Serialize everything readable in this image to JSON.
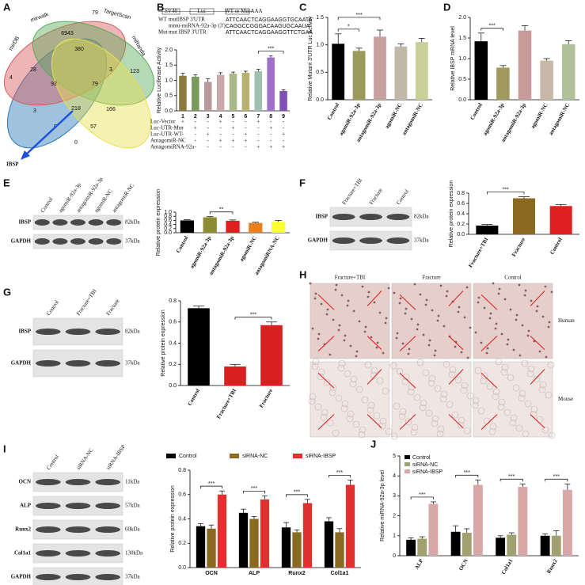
{
  "venn": {
    "panel": "A",
    "sets": [
      "mirDB",
      "mirwalk",
      "TargetScan",
      "miRanda"
    ],
    "counts": [
      4,
      28,
      6943,
      380,
      79,
      92,
      79,
      3,
      123,
      3,
      218,
      166,
      0,
      57,
      0
    ],
    "target": "IBSP"
  },
  "sequences": [
    {
      "label": "WT",
      "name": "mutIBSP 3'UTR",
      "seq": "ATTCAACTCAGGAAGGTGCAATA"
    },
    {
      "label": "",
      "name": "mmu-miRNA-92a-3p (3')",
      "seq": "CAGGCCGGGACAAGUGCAAUA"
    },
    {
      "label": "Mut",
      "name": "mut IBSP 3'UTR",
      "seq": "ATTCAACTCAGGAAGGTTCTGAA"
    }
  ],
  "construct": [
    "SV40",
    "Luc",
    "WT or Mut",
    "AAA"
  ],
  "blots": [
    {
      "lanes": [
        "Control",
        "agomiR-92a-3p",
        "antagomiR-92a-3p",
        "agomiR-NC",
        "antagomiR-NC"
      ],
      "rows": [
        {
          "name": "IBSP",
          "size": "82kDa"
        },
        {
          "name": "GAPDH",
          "size": "37kDa"
        }
      ]
    },
    {
      "lanes": [
        "Fracture+TBI",
        "Fracture",
        "Control"
      ],
      "rows": [
        {
          "name": "IBSP",
          "size": "82kDa"
        },
        {
          "name": "GAPDH",
          "size": "37kDa"
        }
      ]
    },
    {
      "lanes": [
        "Control",
        "Fracture+TBI",
        "Fracture"
      ],
      "rows": [
        {
          "name": "IBSP",
          "size": "82kDa"
        },
        {
          "name": "GAPDH",
          "size": "37kDa"
        }
      ]
    },
    {
      "lanes": [
        "Control",
        "siRNA-NC",
        "siRNA-IBSP"
      ],
      "rows": [
        {
          "name": "OCN",
          "size": "11kDa"
        },
        {
          "name": "ALP",
          "size": "57kDa"
        },
        {
          "name": "Runx2",
          "size": "60kDa"
        },
        {
          "name": "Col1a1",
          "size": "130kDa"
        },
        {
          "name": "GAPDH",
          "size": "37kDa"
        }
      ]
    }
  ],
  "histology": {
    "panel": "H",
    "columns": [
      "Fracture+TBI",
      "Fracture",
      "Control"
    ],
    "rows": [
      "Human",
      "Mouse"
    ]
  },
  "chart_data": [
    {
      "type": "bar",
      "panel": "B",
      "ylabel": "Relative Luciferase Activity",
      "categories": [
        "1",
        "2",
        "3",
        "4",
        "5",
        "6",
        "7",
        "8",
        "9"
      ],
      "values": [
        1.15,
        1.12,
        0.95,
        1.18,
        1.22,
        1.25,
        1.3,
        1.75,
        0.65
      ],
      "errors": [
        0.08,
        0.06,
        0.1,
        0.07,
        0.05,
        0.05,
        0.06,
        0.05,
        0.04
      ],
      "colors": [
        "#8c7a3c",
        "#7a9a5a",
        "#b89a9a",
        "#c8a8a8",
        "#a8b888",
        "#b8b070",
        "#a0c0b0",
        "#a070c8",
        "#8050b8"
      ],
      "ylim": [
        0,
        2
      ],
      "yticks": [
        {
          "value": 0,
          "label": "0.0"
        },
        0.5,
        {
          "value": 1,
          "label": "1.0"
        },
        1.5,
        {
          "value": 2,
          "label": "2.0"
        }
      ],
      "significance": [
        {
          "between": [
            "7",
            "9"
          ],
          "label": "***"
        }
      ],
      "treatments": [
        {
          "name": "Luc-Vector",
          "marks": [
            "+",
            "-",
            "-",
            "+",
            "-",
            "-",
            "+",
            "-",
            "-"
          ]
        },
        {
          "name": "Luc-UTR-Mut",
          "marks": [
            "-",
            "+",
            "-",
            "-",
            "+",
            "-",
            "-",
            "+",
            "-"
          ]
        },
        {
          "name": "Luc-UTR-WT",
          "marks": [
            "-",
            "-",
            "+",
            "-",
            "-",
            "+",
            "-",
            "-",
            "+"
          ]
        },
        {
          "name": "AntagomiR-NC",
          "marks": [
            "-",
            "-",
            "-",
            "+",
            "+",
            "+",
            "-",
            "-",
            "-"
          ]
        },
        {
          "name": "AntagomiRNA-92a",
          "marks": [
            "-",
            "-",
            "-",
            "-",
            "-",
            "-",
            "+",
            "+",
            "+"
          ]
        }
      ]
    },
    {
      "type": "bar",
      "panel": "C",
      "ylabel": "Relative Mutant 3'UTR Luc Activity",
      "categories": [
        "Control",
        "agomiR-92a-3p",
        "antagomiR-92a-3p",
        "agomiR-NC",
        "antagomiR-NC"
      ],
      "values": [
        1.02,
        0.89,
        1.15,
        0.97,
        1.05
      ],
      "errors": [
        0.18,
        0.05,
        0.12,
        0.05,
        0.07
      ],
      "colors": [
        "#000000",
        "#9a9a5a",
        "#c8a0a0",
        "#c0b8a8",
        "#c8d098"
      ],
      "ylim": [
        0,
        1.5
      ],
      "yticks": [
        {
          "value": 0,
          "label": "0.0"
        },
        0.5,
        {
          "value": 1,
          "label": "1.0"
        },
        1.5
      ],
      "significance": [
        {
          "between": [
            "Control",
            "agomiR-92a-3p"
          ],
          "label": "*"
        },
        {
          "between": [
            "Control",
            "antagomiR-92a-3p"
          ],
          "label": "***"
        }
      ]
    },
    {
      "type": "bar",
      "panel": "D",
      "ylabel": "Relative IBSP mRNA level",
      "categories": [
        "Control",
        "agomiR-92a-3p",
        "antagomiR-92a-3p",
        "agomiR-NC",
        "antagomiR-NC"
      ],
      "values": [
        1.42,
        0.78,
        1.68,
        0.95,
        1.35
      ],
      "errors": [
        0.2,
        0.05,
        0.12,
        0.05,
        0.08
      ],
      "colors": [
        "#000000",
        "#a09a60",
        "#c89a9a",
        "#c8b8a8",
        "#b0c098"
      ],
      "ylim": [
        0,
        2
      ],
      "yticks": [
        {
          "value": 0,
          "label": "0.0"
        },
        0.5,
        {
          "value": 1,
          "label": "1.0"
        },
        1.5,
        {
          "value": 2,
          "label": "2.0"
        }
      ],
      "significance": [
        {
          "between": [
            "Control",
            "agomiR-92a-3p"
          ],
          "label": "***"
        }
      ]
    },
    {
      "type": "bar",
      "panel": "E",
      "ylabel": "Relative protein expression",
      "categories": [
        "Control",
        "agomiR-92a-3p",
        "antagomiR-92a-3p",
        "agomiR-NC",
        "antagomiRNA-NC"
      ],
      "values": [
        0.6,
        0.75,
        0.58,
        0.48,
        0.53
      ],
      "errors": [
        0.03,
        0.03,
        0.04,
        0.03,
        0.07
      ],
      "colors": [
        "#000000",
        "#8c8c32",
        "#e02020",
        "#e88020",
        "#ffff30"
      ],
      "ylim": [
        0,
        1
      ],
      "yticks": [
        {
          "value": 0,
          "label": "0.0"
        },
        0.2,
        0.4,
        0.6,
        0.8,
        {
          "value": 1,
          "label": "1.0"
        }
      ],
      "significance": [
        {
          "between": [
            "agomiR-92a-3p",
            "antagomiR-92a-3p"
          ],
          "label": "**"
        }
      ]
    },
    {
      "type": "bar",
      "panel": "F",
      "ylabel": "Relative protein expression",
      "categories": [
        "Fracture+TBI",
        "Fracture",
        "Control"
      ],
      "values": [
        0.17,
        0.7,
        0.55
      ],
      "errors": [
        0.02,
        0.03,
        0.03
      ],
      "colors": [
        "#000000",
        "#8a6a20",
        "#e02020"
      ],
      "ylim": [
        0,
        0.8
      ],
      "yticks": [
        {
          "value": 0,
          "label": "0.0"
        },
        0.2,
        0.4,
        0.6,
        0.8
      ],
      "significance": [
        {
          "between": [
            "Fracture+TBI",
            "Fracture"
          ],
          "label": "***"
        }
      ]
    },
    {
      "type": "bar",
      "panel": "G",
      "ylabel": "Relative protein expression",
      "categories": [
        "Control",
        "Fracture+TBI",
        "Fracture"
      ],
      "values": [
        0.73,
        0.18,
        0.57
      ],
      "errors": [
        0.02,
        0.02,
        0.03
      ],
      "colors": [
        "#000000",
        "#d82020",
        "#d82020"
      ],
      "ylim": [
        0,
        0.8
      ],
      "yticks": [
        {
          "value": 0,
          "label": "0.0"
        },
        0.2,
        0.4,
        0.6,
        0.8
      ],
      "significance": [
        {
          "between": [
            "Fracture+TBI",
            "Fracture"
          ],
          "label": "***"
        }
      ]
    },
    {
      "type": "bar",
      "panel": "I",
      "ylabel": "Relative protein expression",
      "categories": [
        "OCN",
        "ALP",
        "Runx2",
        "Col1a1"
      ],
      "series": [
        {
          "name": "Control",
          "color": "#000000",
          "values": [
            0.34,
            0.45,
            0.33,
            0.38
          ],
          "errors": [
            0.02,
            0.03,
            0.04,
            0.03
          ]
        },
        {
          "name": "siRNA-NC",
          "color": "#8a6a20",
          "values": [
            0.32,
            0.4,
            0.29,
            0.29
          ],
          "errors": [
            0.03,
            0.02,
            0.02,
            0.03
          ]
        },
        {
          "name": "siRNA-IBSP",
          "color": "#e03030",
          "values": [
            0.6,
            0.56,
            0.53,
            0.68
          ],
          "errors": [
            0.03,
            0.03,
            0.03,
            0.04
          ]
        }
      ],
      "ylim": [
        0,
        0.8
      ],
      "yticks": [
        {
          "value": 0,
          "label": "0.0"
        },
        0.2,
        0.4,
        0.6,
        0.8
      ],
      "group_significance": [
        "***",
        "***",
        "***",
        "***"
      ],
      "legend": "top"
    },
    {
      "type": "bar",
      "panel": "J",
      "ylabel": "Relative miRNA-92a-3p level",
      "categories": [
        "ALP",
        "OCN",
        "Col1a1",
        "Runx2"
      ],
      "series": [
        {
          "name": "Control",
          "color": "#000000",
          "values": [
            0.8,
            1.2,
            0.9,
            1.0
          ],
          "errors": [
            0.1,
            0.3,
            0.1,
            0.1
          ]
        },
        {
          "name": "siRNA-NC",
          "color": "#a0a070",
          "values": [
            0.85,
            1.15,
            1.05,
            1.0
          ],
          "errors": [
            0.1,
            0.2,
            0.1,
            0.25
          ]
        },
        {
          "name": "siRNA-IBSP",
          "color": "#d8a8a8",
          "values": [
            2.6,
            3.55,
            3.45,
            3.3
          ],
          "errors": [
            0.1,
            0.25,
            0.15,
            0.3
          ]
        }
      ],
      "ylim": [
        0,
        5
      ],
      "yticks": [
        0,
        1,
        2,
        3,
        4,
        5
      ],
      "group_significance": [
        "***",
        "***",
        "***",
        "***"
      ],
      "legend": "upper left"
    }
  ]
}
